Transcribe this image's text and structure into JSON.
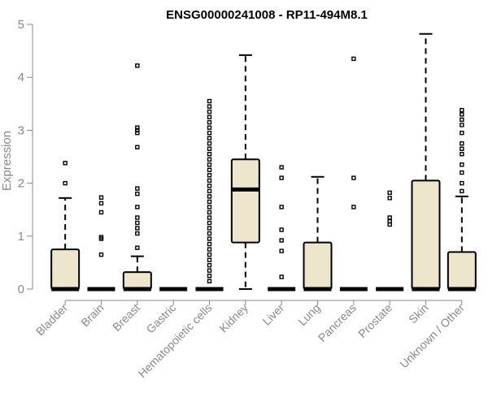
{
  "chart_data": {
    "type": "boxplot",
    "title": "ENSG00000241008 - RP11-494M8.1",
    "xlabel": "",
    "ylabel": "Expression",
    "ylim": [
      0,
      5
    ],
    "yticks": [
      0,
      1,
      2,
      3,
      4,
      5
    ],
    "grid": false,
    "colors": {
      "box_fill": "#ede6cc",
      "line": "#000000",
      "axis_text": "#888888"
    },
    "categories": [
      "Bladder",
      "Brain",
      "Breast",
      "Gastric",
      "Hematopoietic cells",
      "Kidney",
      "Liver",
      "Lung",
      "Pancreas",
      "Prostate",
      "Skin",
      "Unknown / Other"
    ],
    "boxes": [
      {
        "category": "Bladder",
        "q1": 0,
        "median": 0,
        "q3": 0.75,
        "whisker_low": 0,
        "whisker_high": 1.72,
        "outliers": [
          2.0,
          2.38
        ]
      },
      {
        "category": "Brain",
        "q1": 0,
        "median": 0,
        "q3": 0,
        "whisker_low": 0,
        "whisker_high": 0,
        "outliers": [
          0.65,
          0.95,
          0.98,
          1.45,
          1.62,
          1.73
        ]
      },
      {
        "category": "Breast",
        "q1": 0,
        "median": 0,
        "q3": 0.32,
        "whisker_low": 0,
        "whisker_high": 0.62,
        "outliers": [
          0.78,
          1.05,
          1.15,
          1.25,
          1.35,
          1.55,
          1.8,
          1.9,
          2.68,
          2.95,
          3.0,
          3.05,
          4.22
        ]
      },
      {
        "category": "Gastric",
        "q1": 0,
        "median": 0,
        "q3": 0,
        "whisker_low": 0,
        "whisker_high": 0,
        "outliers": []
      },
      {
        "category": "Hematopoietic cells",
        "q1": 0,
        "median": 0,
        "q3": 0,
        "whisker_low": 0,
        "whisker_high": 0,
        "outliers": [
          0.15,
          0.25,
          0.35,
          0.45,
          0.55,
          0.65,
          0.75,
          0.85,
          0.95,
          1.05,
          1.15,
          1.25,
          1.35,
          1.45,
          1.55,
          1.65,
          1.75,
          1.85,
          1.95,
          2.05,
          2.15,
          2.25,
          2.35,
          2.45,
          2.55,
          2.65,
          2.75,
          2.85,
          2.95,
          3.05,
          3.15,
          3.25,
          3.35,
          3.45,
          3.55
        ]
      },
      {
        "category": "Kidney",
        "q1": 0.88,
        "median": 1.88,
        "q3": 2.45,
        "whisker_low": 0,
        "whisker_high": 4.42,
        "outliers": []
      },
      {
        "category": "Liver",
        "q1": 0,
        "median": 0,
        "q3": 0,
        "whisker_low": 0,
        "whisker_high": 0,
        "outliers": [
          0.23,
          0.72,
          0.92,
          1.12,
          1.55,
          2.1,
          2.3
        ]
      },
      {
        "category": "Lung",
        "q1": 0,
        "median": 0,
        "q3": 0.88,
        "whisker_low": 0,
        "whisker_high": 2.12,
        "outliers": []
      },
      {
        "category": "Pancreas",
        "q1": 0,
        "median": 0,
        "q3": 0,
        "whisker_low": 0,
        "whisker_high": 0,
        "outliers": [
          1.55,
          2.1,
          4.35
        ]
      },
      {
        "category": "Prostate",
        "q1": 0,
        "median": 0,
        "q3": 0,
        "whisker_low": 0,
        "whisker_high": 0,
        "outliers": [
          1.22,
          1.28,
          1.35,
          1.72,
          1.82
        ]
      },
      {
        "category": "Skin",
        "q1": 0,
        "median": 0,
        "q3": 2.05,
        "whisker_low": 0,
        "whisker_high": 4.82,
        "outliers": []
      },
      {
        "category": "Unknown / Other",
        "q1": 0,
        "median": 0,
        "q3": 0.7,
        "whisker_low": 0,
        "whisker_high": 1.75,
        "outliers": [
          1.85,
          2.0,
          2.2,
          2.35,
          2.55,
          2.65,
          2.75,
          2.95,
          3.1,
          3.2,
          3.3,
          3.38
        ]
      }
    ]
  }
}
